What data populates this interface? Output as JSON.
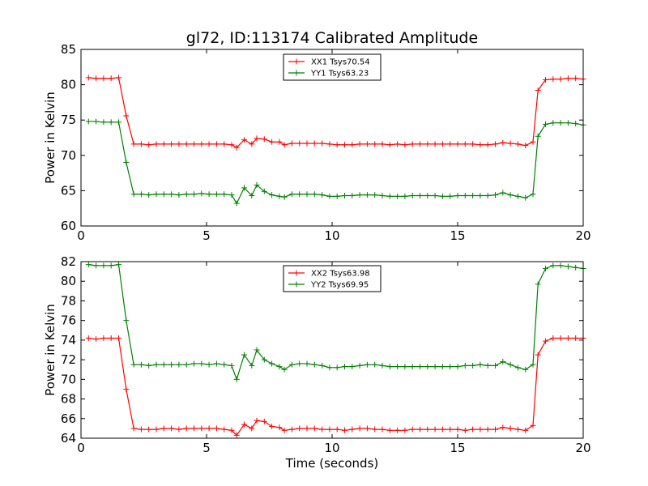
{
  "chart_data": [
    {
      "type": "line",
      "title": "gl72, ID:113174 Calibrated Amplitude",
      "xlabel": "",
      "ylabel": "Power in Kelvin",
      "xlim": [
        0,
        20
      ],
      "ylim": [
        60,
        85
      ],
      "xticks": [
        "0",
        "5",
        "10",
        "15",
        "20"
      ],
      "yticks": [
        "60",
        "65",
        "70",
        "75",
        "80",
        "85"
      ],
      "grid": false,
      "legend_position": "top-center",
      "x": [
        0.3,
        0.6,
        0.9,
        1.2,
        1.5,
        1.8,
        2.1,
        2.4,
        2.7,
        3.0,
        3.3,
        3.6,
        3.9,
        4.2,
        4.5,
        4.8,
        5.1,
        5.4,
        5.7,
        6.0,
        6.2,
        6.5,
        6.8,
        7.0,
        7.3,
        7.6,
        7.9,
        8.1,
        8.4,
        8.7,
        9.0,
        9.3,
        9.6,
        9.9,
        10.2,
        10.5,
        10.8,
        11.1,
        11.4,
        11.7,
        12.0,
        12.3,
        12.6,
        12.9,
        13.2,
        13.5,
        13.8,
        14.1,
        14.4,
        14.7,
        15.0,
        15.3,
        15.6,
        15.9,
        16.2,
        16.5,
        16.8,
        17.1,
        17.4,
        17.7,
        18.0,
        18.2,
        18.5,
        18.8,
        19.1,
        19.4,
        19.7,
        20.0
      ],
      "series": [
        {
          "name": "XX1 Tsys70.54",
          "color": "#ff0000",
          "values": [
            81.0,
            80.9,
            80.9,
            80.9,
            81.0,
            75.6,
            71.6,
            71.6,
            71.5,
            71.6,
            71.6,
            71.6,
            71.6,
            71.6,
            71.6,
            71.6,
            71.6,
            71.6,
            71.6,
            71.5,
            71.1,
            72.2,
            71.6,
            72.4,
            72.3,
            71.9,
            71.9,
            71.5,
            71.7,
            71.7,
            71.7,
            71.7,
            71.7,
            71.6,
            71.5,
            71.5,
            71.5,
            71.6,
            71.6,
            71.6,
            71.6,
            71.5,
            71.6,
            71.5,
            71.6,
            71.6,
            71.6,
            71.6,
            71.6,
            71.6,
            71.6,
            71.6,
            71.6,
            71.5,
            71.5,
            71.6,
            71.8,
            71.7,
            71.6,
            71.4,
            71.9,
            79.2,
            80.7,
            80.8,
            80.8,
            80.9,
            80.9,
            80.8
          ]
        },
        {
          "name": "YY1 Tsys63.23",
          "color": "#008000",
          "values": [
            74.8,
            74.8,
            74.7,
            74.7,
            74.7,
            69.0,
            64.5,
            64.5,
            64.4,
            64.5,
            64.5,
            64.5,
            64.4,
            64.5,
            64.5,
            64.6,
            64.5,
            64.5,
            64.5,
            64.4,
            63.2,
            65.4,
            64.3,
            65.8,
            64.9,
            64.4,
            64.2,
            64.1,
            64.5,
            64.5,
            64.5,
            64.5,
            64.4,
            64.2,
            64.2,
            64.3,
            64.3,
            64.4,
            64.4,
            64.4,
            64.3,
            64.2,
            64.2,
            64.2,
            64.3,
            64.3,
            64.3,
            64.3,
            64.2,
            64.2,
            64.3,
            64.3,
            64.3,
            64.3,
            64.3,
            64.4,
            64.7,
            64.4,
            64.2,
            64.0,
            64.5,
            72.7,
            74.4,
            74.6,
            74.6,
            74.6,
            74.5,
            74.3
          ]
        }
      ]
    },
    {
      "type": "line",
      "title": "",
      "xlabel": "Time (seconds)",
      "ylabel": "Power in Kelvin",
      "xlim": [
        0,
        20
      ],
      "ylim": [
        64,
        82
      ],
      "xticks": [
        "0",
        "5",
        "10",
        "15",
        "20"
      ],
      "yticks": [
        "64",
        "66",
        "68",
        "70",
        "72",
        "74",
        "76",
        "78",
        "80",
        "82"
      ],
      "grid": false,
      "legend_position": "top-center",
      "x": [
        0.3,
        0.6,
        0.9,
        1.2,
        1.5,
        1.8,
        2.1,
        2.4,
        2.7,
        3.0,
        3.3,
        3.6,
        3.9,
        4.2,
        4.5,
        4.8,
        5.1,
        5.4,
        5.7,
        6.0,
        6.2,
        6.5,
        6.8,
        7.0,
        7.3,
        7.6,
        7.9,
        8.1,
        8.4,
        8.7,
        9.0,
        9.3,
        9.6,
        9.9,
        10.2,
        10.5,
        10.8,
        11.1,
        11.4,
        11.7,
        12.0,
        12.3,
        12.6,
        12.9,
        13.2,
        13.5,
        13.8,
        14.1,
        14.4,
        14.7,
        15.0,
        15.3,
        15.6,
        15.9,
        16.2,
        16.5,
        16.8,
        17.1,
        17.4,
        17.7,
        18.0,
        18.2,
        18.5,
        18.8,
        19.1,
        19.4,
        19.7,
        20.0
      ],
      "series": [
        {
          "name": "XX2 Tsys63.98",
          "color": "#ff0000",
          "values": [
            74.2,
            74.1,
            74.2,
            74.2,
            74.2,
            69.0,
            65.0,
            64.9,
            64.9,
            64.9,
            65.0,
            65.0,
            64.9,
            65.0,
            65.0,
            65.0,
            65.0,
            65.0,
            64.9,
            64.8,
            64.3,
            65.4,
            65.0,
            65.8,
            65.7,
            65.2,
            65.1,
            64.8,
            64.9,
            65.0,
            65.0,
            65.0,
            64.9,
            64.9,
            64.9,
            64.8,
            64.9,
            65.0,
            65.0,
            64.9,
            64.9,
            64.8,
            64.8,
            64.8,
            64.9,
            64.9,
            64.9,
            64.9,
            64.9,
            64.9,
            64.9,
            64.8,
            64.9,
            64.9,
            64.9,
            64.9,
            65.1,
            65.0,
            64.9,
            64.8,
            65.3,
            72.5,
            73.9,
            74.2,
            74.2,
            74.2,
            74.2,
            74.2
          ]
        },
        {
          "name": "YY2 Tsys69.95",
          "color": "#008000",
          "values": [
            81.7,
            81.6,
            81.6,
            81.6,
            81.7,
            76.0,
            71.5,
            71.5,
            71.4,
            71.5,
            71.5,
            71.5,
            71.5,
            71.5,
            71.6,
            71.6,
            71.5,
            71.6,
            71.5,
            71.4,
            70.0,
            72.5,
            71.4,
            73.0,
            72.0,
            71.6,
            71.3,
            71.0,
            71.5,
            71.6,
            71.6,
            71.5,
            71.4,
            71.2,
            71.2,
            71.3,
            71.3,
            71.4,
            71.5,
            71.5,
            71.4,
            71.3,
            71.3,
            71.3,
            71.3,
            71.3,
            71.3,
            71.3,
            71.3,
            71.3,
            71.3,
            71.4,
            71.4,
            71.5,
            71.4,
            71.4,
            71.8,
            71.5,
            71.2,
            71.0,
            71.5,
            79.7,
            81.3,
            81.6,
            81.6,
            81.5,
            81.4,
            81.3
          ]
        }
      ]
    }
  ]
}
